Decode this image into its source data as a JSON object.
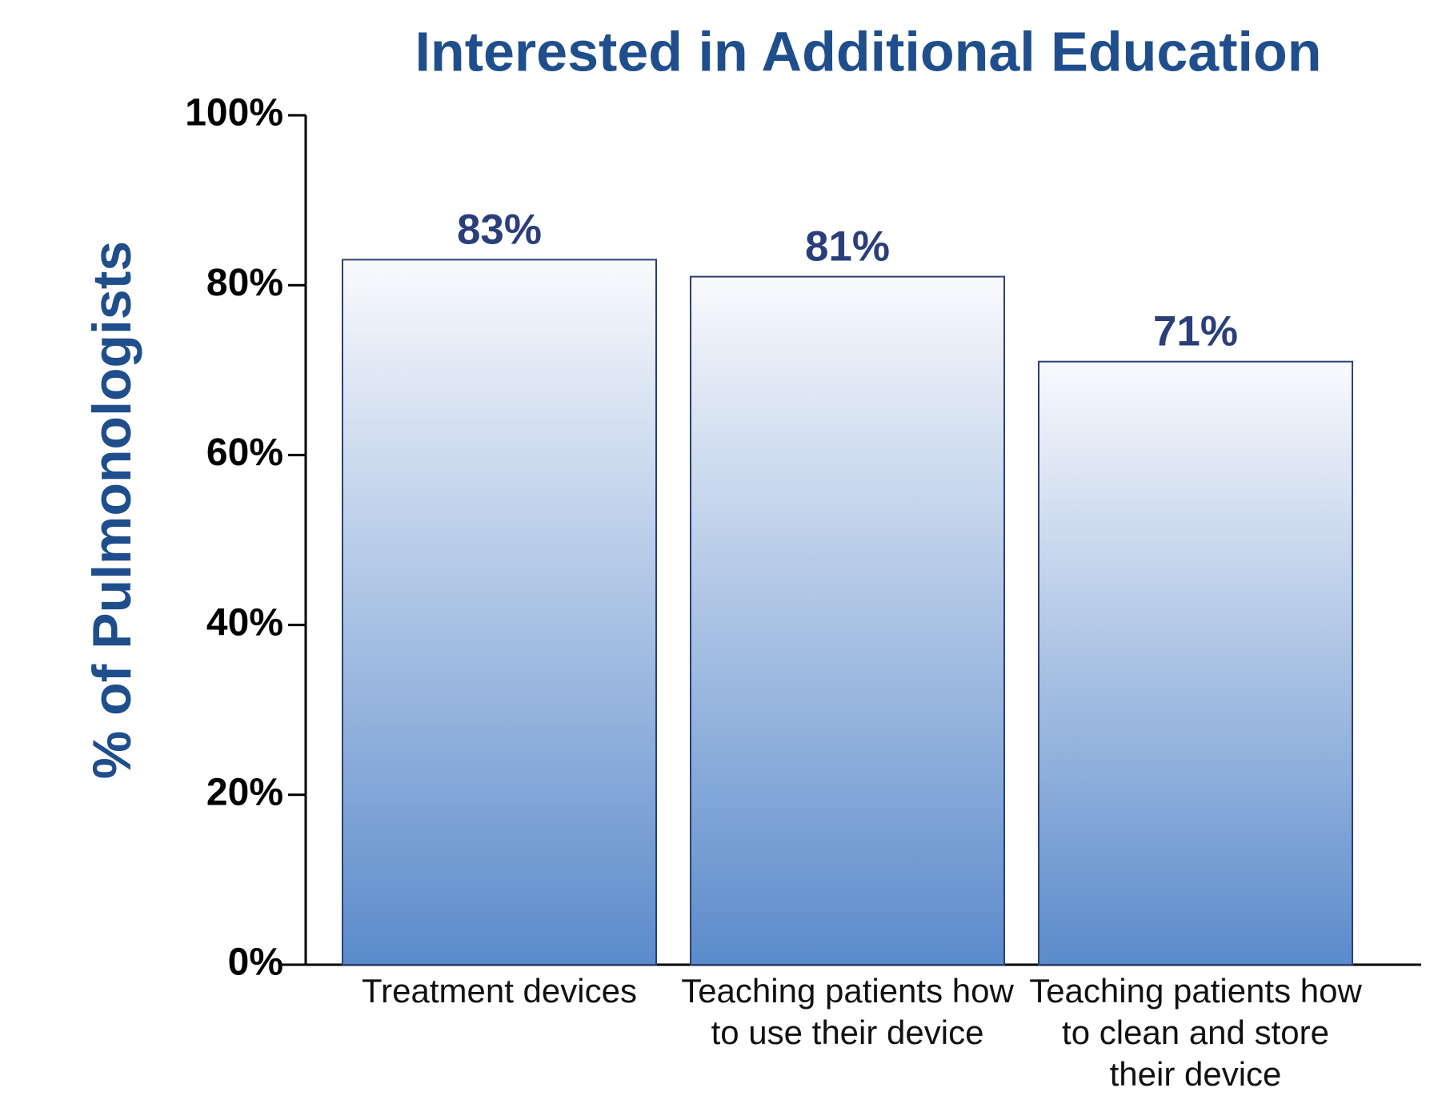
{
  "chart_data": {
    "type": "bar",
    "title": "Interested in Additional Education",
    "y_label": "% of Pulmonologists",
    "categories": [
      "Treatment devices",
      "Teaching patients how to use their device",
      "Teaching patients how to clean and store their device"
    ],
    "values": [
      83,
      81,
      71
    ],
    "value_labels": [
      "83%",
      "81%",
      "71%"
    ],
    "color": "#5b8bcb",
    "ylim": [
      0,
      100
    ],
    "yticks": [
      {
        "value": 0,
        "label": "0%"
      },
      {
        "value": 20,
        "label": "20%"
      },
      {
        "value": 40,
        "label": "40%"
      },
      {
        "value": 60,
        "label": "60%"
      },
      {
        "value": 80,
        "label": "80%"
      },
      {
        "value": 100,
        "label": "100%"
      }
    ],
    "grid": false
  }
}
